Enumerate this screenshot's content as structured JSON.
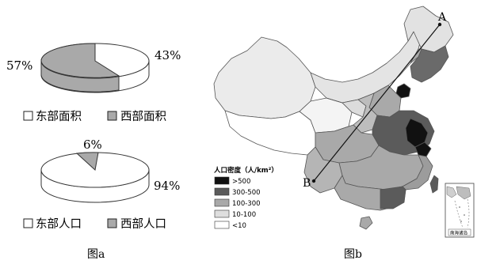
{
  "figure_a": {
    "pie_area": {
      "east_pct": "43%",
      "west_pct": "57%"
    },
    "legend_area": {
      "east": "东部面积",
      "west": "西部面积"
    },
    "pie_pop": {
      "east_pct": "94%",
      "west_pct": "6%"
    },
    "legend_pop": {
      "east": "东部人口",
      "west": "西部人口"
    },
    "caption": "图a"
  },
  "figure_b": {
    "point_a": "A",
    "point_b": "B",
    "legend_title": "人口密度（人/km²）",
    "legend_items": [
      {
        "label": ">500",
        "color": "#111111"
      },
      {
        "label": "300-500",
        "color": "#5b5b5b"
      },
      {
        "label": "100-300",
        "color": "#a9a9a9"
      },
      {
        "label": "10-100",
        "color": "#dedede"
      },
      {
        "label": "<10",
        "color": "#ffffff"
      }
    ],
    "inset_label": "南海诸岛",
    "caption": "图b"
  }
}
